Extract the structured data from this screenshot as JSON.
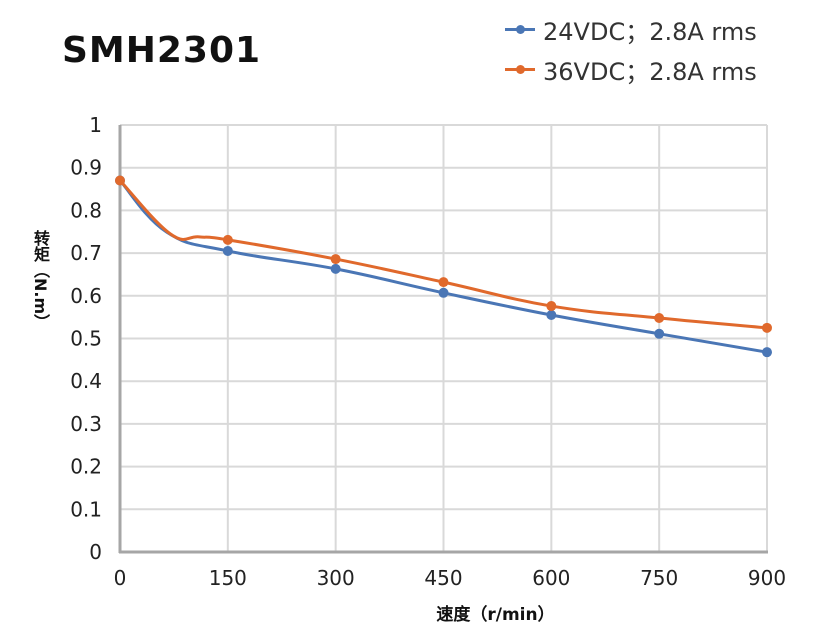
{
  "chart_data": {
    "type": "line",
    "title": "SMH2301",
    "xlabel": "速度（r/min）",
    "ylabel": "转矩（N.m）",
    "xlim": [
      0,
      900
    ],
    "ylim": [
      0,
      1
    ],
    "xticks": [
      "0",
      "150",
      "300",
      "450",
      "600",
      "750",
      "900"
    ],
    "yticks": [
      "0",
      "0.1",
      "0.2",
      "0.3",
      "0.4",
      "0.5",
      "0.6",
      "0.7",
      "0.8",
      "0.9",
      "1"
    ],
    "grid": true,
    "legend_position": "top-right",
    "series": [
      {
        "name": "24VDC；2.8A rms",
        "color": "#4a76b5",
        "x": [
          0,
          150,
          300,
          450,
          600,
          750,
          900
        ],
        "values": [
          0.87,
          0.705,
          0.663,
          0.607,
          0.555,
          0.511,
          0.468
        ],
        "curve_extra": [
          [
            65,
            0.749
          ]
        ]
      },
      {
        "name": "36VDC；2.8A rms",
        "color": "#e0692c",
        "x": [
          0,
          150,
          300,
          450,
          600,
          750,
          900
        ],
        "values": [
          0.87,
          0.731,
          0.686,
          0.632,
          0.576,
          0.548,
          0.525
        ],
        "curve_extra": [
          [
            70,
            0.745
          ],
          [
            110,
            0.738
          ]
        ]
      }
    ]
  }
}
